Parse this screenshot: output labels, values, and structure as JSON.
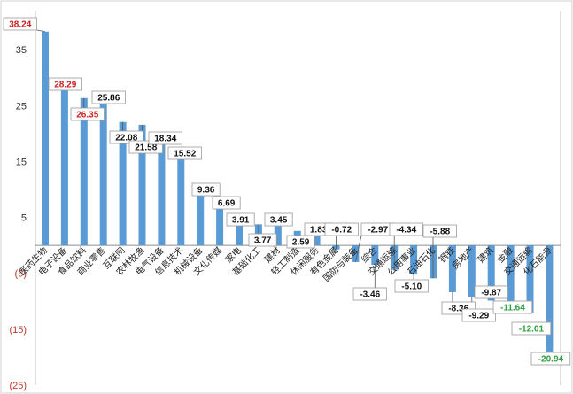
{
  "chart_data": {
    "type": "bar",
    "categories": [
      "医药生物",
      "电子设备",
      "食品饮料",
      "商业零售",
      "互联网",
      "农林牧渔",
      "电气设备",
      "信息技术",
      "机械设备",
      "文化传媒",
      "家电",
      "基础化工",
      "建材",
      "轻工制造",
      "休闲服务",
      "有色金属",
      "国防与装备",
      "综合",
      "交通运输",
      "公用事业",
      "石油石化",
      "钢铁",
      "房地产",
      "建筑",
      "金融",
      "交通运输",
      "化石能源"
    ],
    "values": [
      38.24,
      28.29,
      26.35,
      25.86,
      22.08,
      21.58,
      18.34,
      15.52,
      9.36,
      6.69,
      3.91,
      3.77,
      3.45,
      2.59,
      1.83,
      -0.72,
      -2.97,
      -3.46,
      -4.34,
      -5.1,
      -5.88,
      -8.36,
      -9.29,
      -9.87,
      -11.64,
      -12.01,
      -20.94
    ],
    "value_labels": [
      "38.24",
      "28.29",
      "26.35",
      "25.86",
      "22.08",
      "21.58",
      "18.34",
      "15.52",
      "9.36",
      "6.69",
      "3.91",
      "3.77",
      "3.45",
      "2.59",
      "1.83",
      "-0.72",
      "-2.97",
      "-3.46",
      "-4.34",
      "-5.10",
      "-5.88",
      "-8.36",
      "-9.29",
      "-9.87",
      "-11.64",
      "-12.01",
      "-20.94"
    ],
    "label_colors": [
      "#cc2222",
      "#cc2222",
      "#cc2222",
      "#111111",
      "#111111",
      "#111111",
      "#111111",
      "#111111",
      "#111111",
      "#111111",
      "#111111",
      "#111111",
      "#111111",
      "#111111",
      "#111111",
      "#111111",
      "#111111",
      "#111111",
      "#111111",
      "#111111",
      "#111111",
      "#111111",
      "#111111",
      "#111111",
      "#2e9e3e",
      "#2e9e3e",
      "#2e9e3e"
    ],
    "yticks": [
      {
        "value": 35,
        "label": "35"
      },
      {
        "value": 25,
        "label": "25"
      },
      {
        "value": 15,
        "label": "15"
      },
      {
        "value": 5,
        "label": "5"
      },
      {
        "value": -5,
        "label": "(5)"
      },
      {
        "value": -15,
        "label": "(15)"
      },
      {
        "value": -25,
        "label": "(25)"
      }
    ],
    "ylim": [
      -25,
      42
    ],
    "bar_color": "#5b9bd5",
    "grid": false,
    "title": "",
    "xlabel": "",
    "ylabel": ""
  }
}
